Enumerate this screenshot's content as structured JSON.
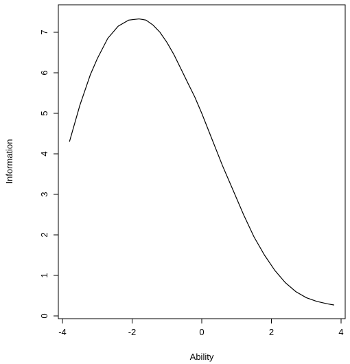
{
  "chart_data": {
    "type": "line",
    "title": "",
    "xlabel": "Ability",
    "ylabel": "Information",
    "xlim": [
      -4,
      4
    ],
    "ylim": [
      0,
      7.4
    ],
    "x_ticks": [
      -4,
      -2,
      0,
      2,
      4
    ],
    "y_ticks": [
      0,
      1,
      2,
      3,
      4,
      5,
      6,
      7
    ],
    "grid": false,
    "legend": "none",
    "series": [
      {
        "color": "#000000",
        "x": [
          -3.8,
          -3.5,
          -3.2,
          -3.0,
          -2.7,
          -2.4,
          -2.1,
          -1.8,
          -1.6,
          -1.4,
          -1.2,
          -1.0,
          -0.8,
          -0.6,
          -0.4,
          -0.2,
          0.0,
          0.3,
          0.6,
          0.9,
          1.2,
          1.5,
          1.8,
          2.1,
          2.4,
          2.7,
          3.0,
          3.3,
          3.6,
          3.8
        ],
        "y": [
          4.3,
          5.2,
          5.95,
          6.35,
          6.85,
          7.15,
          7.3,
          7.33,
          7.3,
          7.18,
          7.0,
          6.75,
          6.45,
          6.1,
          5.75,
          5.4,
          5.0,
          4.35,
          3.7,
          3.1,
          2.5,
          1.95,
          1.5,
          1.12,
          0.82,
          0.6,
          0.45,
          0.36,
          0.3,
          0.27
        ]
      }
    ]
  }
}
